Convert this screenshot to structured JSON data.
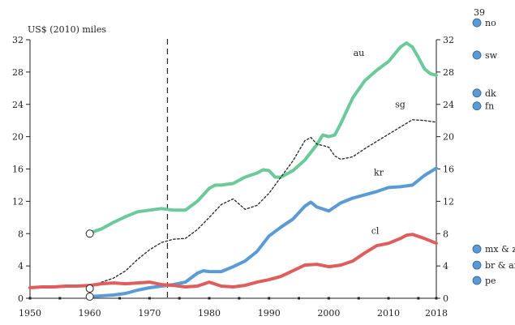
{
  "chart_data": {
    "type": "line",
    "ylabel": "US$ (2010) miles",
    "xlim": [
      1950,
      2018
    ],
    "ylim": [
      0,
      32
    ],
    "yticks": [
      0,
      4,
      8,
      12,
      16,
      20,
      24,
      28,
      32
    ],
    "xticks": [
      1950,
      1960,
      1970,
      1980,
      1990,
      2000,
      2010,
      2018
    ],
    "xtick_labels": [
      "1950",
      "1960",
      "1970",
      "1980",
      "1990",
      "2000",
      "2010",
      "2018"
    ],
    "ytick_labels": [
      "0",
      "4",
      "8",
      "12",
      "16",
      "20",
      "24",
      "28",
      "32"
    ],
    "reference_line_x": 1973,
    "series": [
      {
        "name": "au",
        "color": "#6cc99a",
        "style": "solid",
        "x": [
          1960,
          1962,
          1964,
          1966,
          1968,
          1970,
          1972,
          1974,
          1976,
          1978,
          1980,
          1981,
          1982,
          1984,
          1986,
          1988,
          1989,
          1990,
          1991,
          1992,
          1994,
          1996,
          1998,
          1999,
          2000,
          2001,
          2002,
          2004,
          2006,
          2008,
          2010,
          2012,
          2013,
          2014,
          2015,
          2016,
          2017,
          2018
        ],
        "values": [
          8.1,
          8.6,
          9.4,
          10.1,
          10.7,
          10.9,
          11.1,
          10.9,
          10.9,
          12.0,
          13.6,
          14.0,
          14.0,
          14.2,
          15.0,
          15.5,
          15.9,
          15.8,
          15.0,
          15.0,
          15.8,
          17.1,
          19.0,
          20.2,
          20.0,
          20.2,
          21.6,
          24.8,
          26.9,
          28.2,
          29.3,
          31.1,
          31.6,
          31.1,
          29.8,
          28.4,
          27.8,
          27.6
        ]
      },
      {
        "name": "sg",
        "color": "#222222",
        "style": "dotted",
        "x": [
          1960,
          1962,
          1964,
          1966,
          1968,
          1970,
          1972,
          1974,
          1976,
          1978,
          1980,
          1982,
          1984,
          1986,
          1988,
          1990,
          1992,
          1994,
          1996,
          1997,
          1998,
          2000,
          2001,
          2002,
          2004,
          2006,
          2008,
          2010,
          2012,
          2014,
          2016,
          2018
        ],
        "values": [
          1.5,
          2.0,
          2.5,
          3.4,
          4.8,
          6.0,
          6.9,
          7.3,
          7.4,
          8.5,
          10.0,
          11.6,
          12.3,
          11.0,
          11.5,
          13.0,
          15.0,
          17.0,
          19.5,
          19.9,
          19.1,
          18.7,
          17.6,
          17.2,
          17.5,
          18.5,
          19.4,
          20.3,
          21.2,
          22.1,
          22.0,
          21.8
        ]
      },
      {
        "name": "kr",
        "color": "#5b9bd5",
        "style": "solid",
        "x": [
          1960,
          1962,
          1964,
          1966,
          1968,
          1970,
          1972,
          1974,
          1976,
          1978,
          1979,
          1980,
          1982,
          1984,
          1986,
          1988,
          1990,
          1992,
          1994,
          1996,
          1997,
          1998,
          2000,
          2002,
          2004,
          2006,
          2008,
          2010,
          2012,
          2014,
          2016,
          2018
        ],
        "values": [
          0.2,
          0.3,
          0.4,
          0.6,
          1.0,
          1.3,
          1.5,
          1.7,
          2.0,
          3.1,
          3.4,
          3.3,
          3.3,
          3.9,
          4.6,
          5.8,
          7.7,
          8.8,
          9.8,
          11.4,
          11.9,
          11.3,
          10.8,
          11.8,
          12.4,
          12.8,
          13.2,
          13.7,
          13.8,
          14.0,
          15.2,
          16.1
        ]
      },
      {
        "name": "cl",
        "color": "#e05d5d",
        "style": "solid",
        "x": [
          1950,
          1952,
          1954,
          1956,
          1958,
          1960,
          1962,
          1964,
          1966,
          1968,
          1970,
          1972,
          1974,
          1976,
          1978,
          1980,
          1982,
          1984,
          1986,
          1988,
          1990,
          1992,
          1994,
          1996,
          1998,
          2000,
          2002,
          2004,
          2006,
          2008,
          2010,
          2012,
          2013,
          2014,
          2016,
          2018
        ],
        "values": [
          1.3,
          1.4,
          1.4,
          1.5,
          1.5,
          1.6,
          1.8,
          1.9,
          1.8,
          1.9,
          2.0,
          1.7,
          1.6,
          1.4,
          1.5,
          2.0,
          1.5,
          1.4,
          1.6,
          2.0,
          2.3,
          2.7,
          3.4,
          4.1,
          4.2,
          3.9,
          4.1,
          4.6,
          5.6,
          6.5,
          6.8,
          7.4,
          7.8,
          7.9,
          7.4,
          6.8
        ]
      }
    ],
    "start_markers": [
      {
        "x": 1960,
        "y": 8.0
      },
      {
        "x": 1960,
        "y": 1.2
      },
      {
        "x": 1960,
        "y": 0.2
      }
    ],
    "right_markers": [
      {
        "label": "no",
        "value": 34.1,
        "top_label": "39"
      },
      {
        "label": "sw",
        "value": 30.1
      },
      {
        "label": "dk",
        "value": 25.4
      },
      {
        "label": "fn",
        "value": 23.8
      },
      {
        "label": "mx & za",
        "value": 6.1
      },
      {
        "label": "br & ar",
        "value": 4.1
      },
      {
        "label": "pe",
        "value": 2.2
      }
    ],
    "marker_color": "#5b9bd5"
  }
}
